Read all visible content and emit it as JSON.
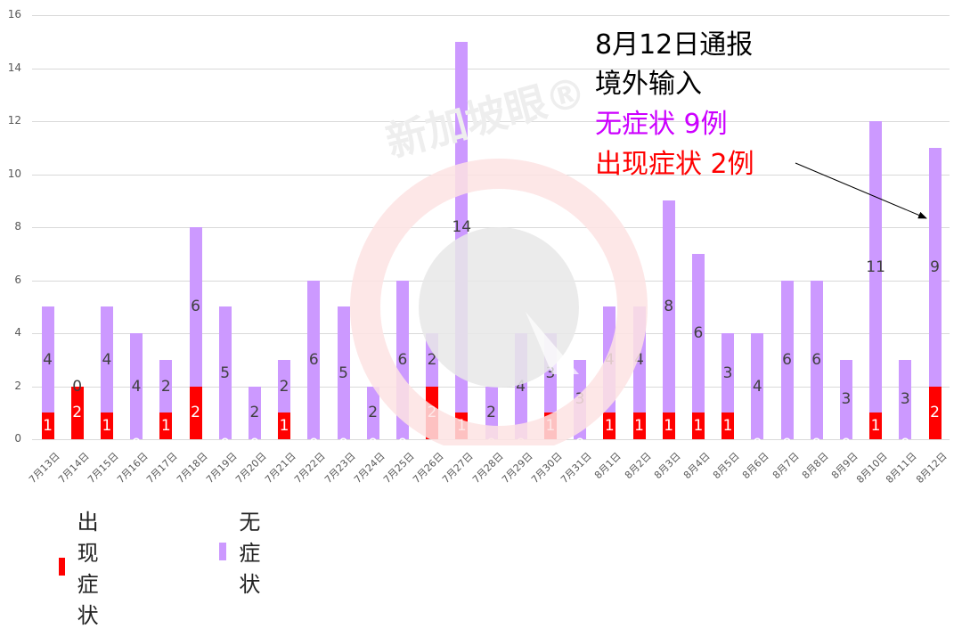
{
  "chart_data": {
    "type": "bar",
    "stacked": true,
    "title": "",
    "xlabel": "",
    "ylabel": "",
    "ylim": [
      0,
      16
    ],
    "yticks": [
      0,
      2,
      4,
      6,
      8,
      10,
      12,
      14,
      16
    ],
    "grid": true,
    "legend_position": "bottom-left",
    "categories": [
      "7月13日",
      "7月14日",
      "7月15日",
      "7月16日",
      "7月17日",
      "7月18日",
      "7月19日",
      "7月20日",
      "7月21日",
      "7月22日",
      "7月23日",
      "7月24日",
      "7月25日",
      "7月26日",
      "7月27日",
      "7月28日",
      "7月29日",
      "7月30日",
      "7月31日",
      "8月1日",
      "8月2日",
      "8月3日",
      "8月4日",
      "8月5日",
      "8月6日",
      "8月7日",
      "8月8日",
      "8月9日",
      "8月10日",
      "8月11日",
      "8月12日"
    ],
    "series": [
      {
        "name": "出现症状",
        "color": "#ff0000",
        "values": [
          1,
          2,
          1,
          0,
          1,
          2,
          0,
          0,
          1,
          0,
          0,
          0,
          0,
          2,
          1,
          0,
          0,
          1,
          0,
          1,
          1,
          1,
          1,
          1,
          0,
          0,
          0,
          0,
          1,
          0,
          2
        ]
      },
      {
        "name": "无症状",
        "color": "#cc99ff",
        "values": [
          4,
          0,
          4,
          4,
          2,
          6,
          5,
          2,
          2,
          6,
          5,
          2,
          6,
          2,
          14,
          2,
          4,
          3,
          3,
          4,
          4,
          8,
          6,
          3,
          4,
          6,
          6,
          3,
          11,
          3,
          9
        ]
      }
    ],
    "annotations": [
      {
        "text": "8月12日通报",
        "color": "#000000"
      },
      {
        "text": "境外输入",
        "color": "#000000"
      },
      {
        "text": "无症状 9例",
        "color": "#cc00ff"
      },
      {
        "text": "出现症状 2例",
        "color": "#ff0000"
      }
    ],
    "arrow": {
      "from_label": "出现症状 2例",
      "to_category": "8月12日"
    }
  },
  "annotation": {
    "line1": "8月12日通报",
    "line2": "境外输入",
    "line3": "无症状 9例",
    "line4": "出现症状 2例"
  },
  "legend": {
    "symptomatic": {
      "label": "出现症状",
      "color": "#ff0000"
    },
    "asymptomatic": {
      "label": "无症状",
      "color": "#cc99ff"
    }
  },
  "watermark": {
    "text": "新加坡眼®"
  }
}
